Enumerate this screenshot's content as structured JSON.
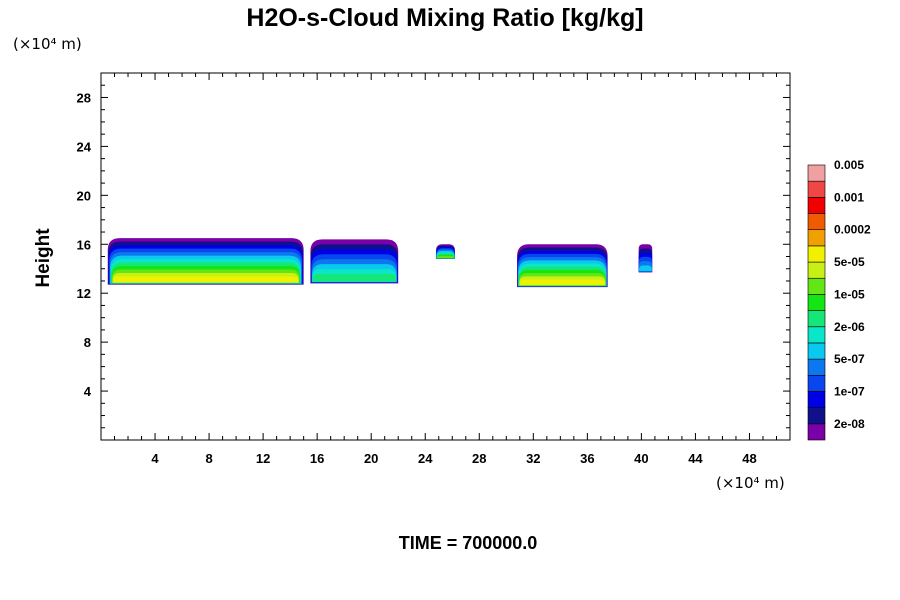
{
  "chart_data": {
    "type": "heatmap",
    "title": "H2O-s-Cloud Mixing Ratio [kg/kg]",
    "ylabel": "Height",
    "xlabel": "",
    "x_unit": "(×10⁴ m)",
    "y_unit": "(×10⁴ m)",
    "footer": "TIME = 700000.0",
    "xlim": [
      0,
      51
    ],
    "ylim": [
      0,
      30
    ],
    "x_ticks": [
      4,
      8,
      12,
      16,
      20,
      24,
      28,
      32,
      36,
      40,
      44,
      48
    ],
    "y_ticks": [
      4,
      8,
      12,
      16,
      20,
      24,
      28
    ],
    "colorbar": {
      "colors": [
        "#7b00a8",
        "#10108a",
        "#0000e6",
        "#0a46f0",
        "#0b78f0",
        "#0ac8f0",
        "#0ae6c8",
        "#14e678",
        "#14e614",
        "#64e614",
        "#c8f014",
        "#f0f000",
        "#f0a000",
        "#f05a00",
        "#f00000",
        "#f04646",
        "#f0a0a0"
      ],
      "labels": [
        "2e-08",
        "1e-07",
        "5e-07",
        "2e-06",
        "1e-05",
        "5e-05",
        "0.0002",
        "0.001",
        "0.005"
      ]
    },
    "cloud_regions": [
      {
        "x_range": [
          0.5,
          15
        ],
        "y_range": [
          12.7,
          16.5
        ],
        "peak": "5e-05"
      },
      {
        "x_range": [
          15.5,
          22
        ],
        "y_range": [
          12.8,
          16.4
        ],
        "peak": "2e-06"
      },
      {
        "x_range": [
          24.8,
          26.2
        ],
        "y_range": [
          14.8,
          16.0
        ],
        "peak": "1e-05"
      },
      {
        "x_range": [
          30.8,
          37.5
        ],
        "y_range": [
          12.5,
          16.0
        ],
        "peak": "5e-05"
      },
      {
        "x_range": [
          39.8,
          40.8
        ],
        "y_range": [
          13.7,
          16.0
        ],
        "peak": "5e-07"
      }
    ]
  }
}
